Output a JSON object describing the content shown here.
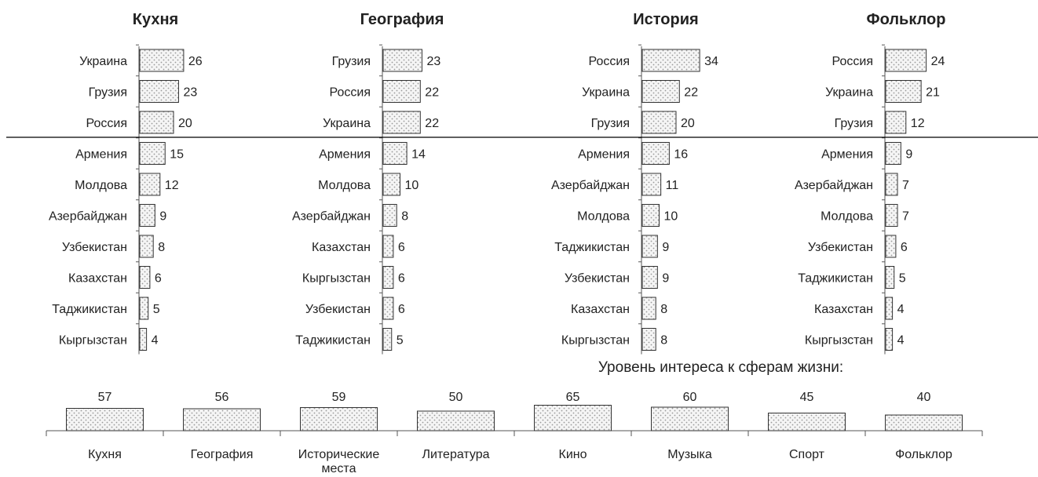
{
  "bottom_title": "Уровень интереса к сферам жизни:",
  "colors": {
    "bar_stroke": "#333333",
    "bar_dot": "#9a9a9a",
    "bar_fill": "#f4f4f4",
    "axis": "#555555",
    "divider": "#000000"
  },
  "chart_data": [
    {
      "type": "bar",
      "orientation": "horizontal",
      "title": "Кухня",
      "categories": [
        "Украина",
        "Грузия",
        "Россия",
        "Армения",
        "Молдова",
        "Азербайджан",
        "Узбекистан",
        "Казахстан",
        "Таджикистан",
        "Кыргызстан"
      ],
      "values": [
        26,
        23,
        20,
        15,
        12,
        9,
        8,
        6,
        5,
        4
      ]
    },
    {
      "type": "bar",
      "orientation": "horizontal",
      "title": "География",
      "categories": [
        "Грузия",
        "Россия",
        "Украина",
        "Армения",
        "Молдова",
        "Азербайджан",
        "Казахстан",
        "Кыргызстан",
        "Узбекистан",
        "Таджикистан"
      ],
      "values": [
        23,
        22,
        22,
        14,
        10,
        8,
        6,
        6,
        6,
        5
      ]
    },
    {
      "type": "bar",
      "orientation": "horizontal",
      "title": "История",
      "categories": [
        "Россия",
        "Украина",
        "Грузия",
        "Армения",
        "Азербайджан",
        "Молдова",
        "Таджикистан",
        "Узбекистан",
        "Казахстан",
        "Кыргызстан"
      ],
      "values": [
        34,
        22,
        20,
        16,
        11,
        10,
        9,
        9,
        8,
        8
      ]
    },
    {
      "type": "bar",
      "orientation": "horizontal",
      "title": "Фольклор",
      "categories": [
        "Россия",
        "Украина",
        "Грузия",
        "Армения",
        "Азербайджан",
        "Молдова",
        "Узбекистан",
        "Таджикистан",
        "Казахстан",
        "Кыргызстан"
      ],
      "values": [
        24,
        21,
        12,
        9,
        7,
        7,
        6,
        5,
        4,
        4
      ]
    },
    {
      "type": "bar",
      "orientation": "vertical",
      "title": "Уровень интереса к сферам жизни:",
      "categories": [
        "Кухня",
        "География",
        "Исторические места",
        "Литература",
        "Кино",
        "Музыка",
        "Спорт",
        "Фольклор"
      ],
      "values": [
        57,
        56,
        59,
        50,
        65,
        60,
        45,
        40
      ]
    }
  ]
}
